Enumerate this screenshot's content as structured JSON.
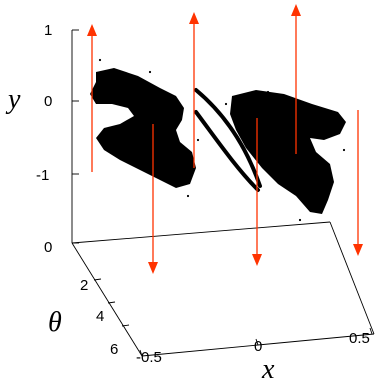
{
  "chart_data": {
    "type": "scatter",
    "projection": "3d",
    "title": "",
    "axes": {
      "y": {
        "label": "y",
        "range": [
          -1,
          1
        ],
        "ticks": [
          "1",
          "0",
          "-1"
        ]
      },
      "z": {
        "label": "",
        "ticks": [
          "0"
        ]
      },
      "theta": {
        "label": "θ",
        "ticks": [
          "2",
          "4",
          "6"
        ]
      },
      "x": {
        "label": "x",
        "range": [
          -0.5,
          0.5
        ],
        "ticks": [
          "-0.5",
          "0",
          "0.5"
        ]
      }
    },
    "grid": false,
    "legend": "none",
    "colors": {
      "points": "#000000",
      "arrows": "#ff3300",
      "axes": "#000000"
    },
    "series": [
      {
        "kind": "scatter-cloud",
        "color": "#000000"
      },
      {
        "kind": "vertical-arrows",
        "color": "#ff3300"
      }
    ]
  }
}
